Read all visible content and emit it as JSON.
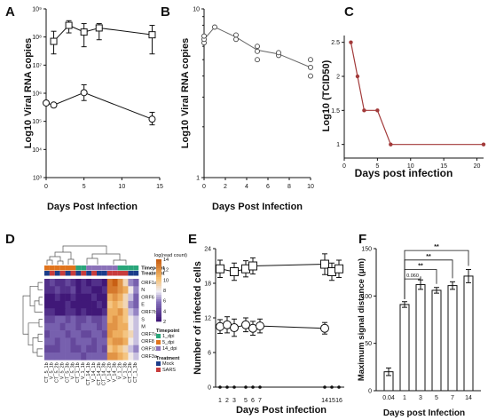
{
  "chart_data": [
    {
      "panel": "A",
      "type": "line",
      "scale_y": "log",
      "ylabel": "Viral RNA copies",
      "ylabel_prefix": "Log10",
      "xlabel": "Days Post Infection",
      "xlim": [
        0,
        15
      ],
      "x_ticks": [
        "0",
        "5",
        "10",
        "15"
      ],
      "ylim": [
        1000,
        1000000000
      ],
      "y_ticks": [
        {
          "v": 1000,
          "t": "10³"
        },
        {
          "v": 10000,
          "t": "10⁴"
        },
        {
          "v": 100000,
          "t": "10⁵"
        },
        {
          "v": 1000000,
          "t": "10⁶"
        },
        {
          "v": 10000000,
          "t": "10⁷"
        },
        {
          "v": 100000000,
          "t": "10⁸"
        },
        {
          "v": 1000000000,
          "t": "10⁹"
        }
      ],
      "series": [
        {
          "marker": "square",
          "points": [
            {
              "x": 1,
              "y": 70000000,
              "lo": 25000000,
              "hi": 160000000
            },
            {
              "x": 3,
              "y": 260000000,
              "lo": 140000000,
              "hi": 380000000
            },
            {
              "x": 5,
              "y": 150000000,
              "lo": 45000000,
              "hi": 300000000
            },
            {
              "x": 7,
              "y": 210000000,
              "lo": 80000000,
              "hi": 300000000
            },
            {
              "x": 14,
              "y": 120000000,
              "lo": 25000000,
              "hi": 260000000
            }
          ]
        },
        {
          "marker": "circle",
          "points": [
            {
              "x": 0,
              "y": 450000
            },
            {
              "x": 1,
              "y": 380000
            },
            {
              "x": 5,
              "y": 1050000,
              "lo": 550000,
              "hi": 2000000
            },
            {
              "x": 14,
              "y": 120000,
              "lo": 75000,
              "hi": 210000
            }
          ]
        }
      ]
    },
    {
      "panel": "B",
      "type": "scatter",
      "scale_y": "log",
      "ylabel": "Viral RNA copies",
      "ylabel_prefix": "Log10",
      "xlabel": "Days Post Infection",
      "xlim": [
        0,
        10
      ],
      "x_ticks": [
        "0",
        "2",
        "4",
        "6",
        "8",
        "10"
      ],
      "ylim": [
        1,
        10
      ],
      "y_ticks": [
        {
          "v": 1,
          "t": "1"
        },
        {
          "v": 10,
          "t": "10"
        }
      ],
      "mean_line": [
        {
          "x": 0,
          "y": 6.6
        },
        {
          "x": 1,
          "y": 7.8
        },
        {
          "x": 3,
          "y": 6.8
        },
        {
          "x": 5,
          "y": 5.7
        },
        {
          "x": 7,
          "y": 5.4
        },
        {
          "x": 10,
          "y": 4.5
        }
      ],
      "points": [
        {
          "x": 0,
          "y": 6.3
        },
        {
          "x": 0,
          "y": 6.6
        },
        {
          "x": 0,
          "y": 6.9
        },
        {
          "x": 1,
          "y": 7.8
        },
        {
          "x": 3,
          "y": 6.6
        },
        {
          "x": 3,
          "y": 7.0
        },
        {
          "x": 5,
          "y": 5.0
        },
        {
          "x": 5,
          "y": 5.6
        },
        {
          "x": 5,
          "y": 6.0
        },
        {
          "x": 7,
          "y": 5.3
        },
        {
          "x": 7,
          "y": 5.5
        },
        {
          "x": 10,
          "y": 4.0
        },
        {
          "x": 10,
          "y": 4.5
        },
        {
          "x": 10,
          "y": 5.0
        }
      ]
    },
    {
      "panel": "C",
      "type": "line",
      "ylabel": "Log10 (TCID50)",
      "xlabel": "Days post infection",
      "xlim": [
        0,
        21
      ],
      "x_ticks": [
        "0",
        "5",
        "10",
        "15",
        "20"
      ],
      "ylim": [
        0.8,
        2.6
      ],
      "y_ticks": [
        "1",
        "1.5",
        "2",
        "2.5"
      ],
      "color": "#a23a3a",
      "points": [
        {
          "x": 1,
          "y": 2.5
        },
        {
          "x": 2,
          "y": 2.0
        },
        {
          "x": 3,
          "y": 1.5
        },
        {
          "x": 5,
          "y": 1.5
        },
        {
          "x": 7,
          "y": 1.0
        },
        {
          "x": 21,
          "y": 1.0
        }
      ]
    },
    {
      "panel": "D",
      "type": "heatmap",
      "colorbar_title": "log(read count)",
      "colorbar_ticks": [
        "14",
        "12",
        "10",
        "8",
        "6",
        "4",
        "2"
      ],
      "rows": [
        "ORF1ab",
        "N",
        "ORF6",
        "E",
        "ORF7b",
        "S",
        "M",
        "ORF7a",
        "ORF8",
        "ORF10",
        "ORF3a"
      ],
      "columns": [
        "CT_5_1b",
        "V_5_1b",
        "CT_5_2b",
        "V_5_2b",
        "CT_5_3b",
        "V_5_3b",
        "CT_1_1b",
        "V_1_1b",
        "CT_14_1b",
        "V_14_1b",
        "CT_14_2b",
        "CT_14_3b",
        "V_14_2b",
        "V_14_3b",
        "V_1_2b",
        "V_1_3b",
        "CT_1_2b",
        "CT_1_3b"
      ],
      "values": [
        [
          3,
          4,
          3,
          3,
          4,
          3,
          2,
          3,
          2,
          3,
          3,
          2,
          13,
          14,
          12,
          9,
          6,
          5
        ],
        [
          3,
          3,
          4,
          3,
          3,
          4,
          2,
          3,
          3,
          2,
          2,
          3,
          13,
          13,
          12,
          11,
          8,
          6
        ],
        [
          2,
          2,
          3,
          2,
          2,
          3,
          2,
          2,
          2,
          3,
          2,
          2,
          11,
          12,
          11,
          9,
          7,
          5
        ],
        [
          2,
          2,
          2,
          2,
          3,
          2,
          2,
          2,
          2,
          2,
          3,
          2,
          10,
          11,
          10,
          9,
          6,
          5
        ],
        [
          3,
          3,
          2,
          2,
          3,
          3,
          2,
          3,
          2,
          2,
          2,
          3,
          11,
          11,
          12,
          10,
          7,
          6
        ],
        [
          4,
          4,
          5,
          5,
          4,
          5,
          4,
          4,
          5,
          4,
          4,
          5,
          11,
          12,
          11,
          10,
          8,
          7
        ],
        [
          5,
          5,
          5,
          4,
          5,
          5,
          4,
          5,
          5,
          5,
          4,
          5,
          12,
          12,
          11,
          11,
          8,
          7
        ],
        [
          4,
          5,
          5,
          5,
          4,
          5,
          5,
          4,
          4,
          5,
          5,
          4,
          12,
          11,
          11,
          10,
          9,
          7
        ],
        [
          5,
          5,
          4,
          5,
          5,
          4,
          5,
          5,
          5,
          4,
          5,
          5,
          11,
          12,
          12,
          11,
          8,
          7
        ],
        [
          4,
          4,
          4,
          5,
          5,
          4,
          4,
          5,
          4,
          4,
          5,
          4,
          10,
          11,
          10,
          9,
          7,
          6
        ],
        [
          5,
          5,
          5,
          5,
          5,
          5,
          5,
          4,
          5,
          5,
          5,
          5,
          12,
          12,
          11,
          10,
          8,
          7
        ]
      ],
      "annotation_tracks": [
        {
          "title": "Timepoint",
          "items": [
            {
              "label": "1_dpi",
              "color": "#2aa67a"
            },
            {
              "label": "5_dpi",
              "color": "#e0741d"
            },
            {
              "label": "14_dpi",
              "color": "#8b72b8"
            }
          ],
          "sequence": [
            "5_dpi",
            "5_dpi",
            "5_dpi",
            "5_dpi",
            "5_dpi",
            "5_dpi",
            "1_dpi",
            "1_dpi",
            "14_dpi",
            "14_dpi",
            "14_dpi",
            "14_dpi",
            "14_dpi",
            "14_dpi",
            "1_dpi",
            "1_dpi",
            "1_dpi",
            "1_dpi"
          ]
        },
        {
          "title": "Treatment",
          "items": [
            {
              "label": "Mock",
              "color": "#1b3d8a"
            },
            {
              "label": "SARS",
              "color": "#c83c3c"
            }
          ],
          "sequence": [
            "Mock",
            "SARS",
            "Mock",
            "SARS",
            "Mock",
            "SARS",
            "Mock",
            "SARS",
            "Mock",
            "SARS",
            "Mock",
            "Mock",
            "SARS",
            "SARS",
            "SARS",
            "SARS",
            "Mock",
            "Mock"
          ]
        }
      ]
    },
    {
      "panel": "E",
      "type": "line",
      "ylabel": "Number of infected cells",
      "xlabel": "Days Post   infection",
      "x_ticks": [
        "1",
        "2",
        "3",
        "5",
        "6",
        "7",
        "14",
        "15",
        "16"
      ],
      "ylim": [
        0,
        24
      ],
      "y_ticks": [
        "0",
        "6",
        "12",
        "18",
        "24"
      ],
      "series": [
        {
          "marker": "square",
          "points": [
            {
              "x": "1",
              "y": 20.5,
              "e": 1.5
            },
            {
              "x": "3",
              "y": 20.0,
              "e": 1.5
            },
            {
              "x": "5",
              "y": 20.5,
              "e": 1.4
            },
            {
              "x": "6",
              "y": 21.0,
              "e": 1.4
            },
            {
              "x": "14",
              "y": 21.3,
              "e": 1.8
            },
            {
              "x": "15",
              "y": 20.0,
              "e": 1.5
            },
            {
              "x": "16",
              "y": 20.5,
              "e": 1.5
            }
          ]
        },
        {
          "marker": "circle",
          "points": [
            {
              "x": "1",
              "y": 10.5,
              "e": 1.2
            },
            {
              "x": "2",
              "y": 10.8,
              "e": 1.4
            },
            {
              "x": "3",
              "y": 10.3,
              "e": 1.5
            },
            {
              "x": "5",
              "y": 10.8,
              "e": 1.2
            },
            {
              "x": "6",
              "y": 10.2,
              "e": 1.2
            },
            {
              "x": "7",
              "y": 10.6,
              "e": 1.2
            },
            {
              "x": "14",
              "y": 10.2,
              "e": 1.0
            }
          ]
        },
        {
          "marker": "dot",
          "points": [
            {
              "x": "1",
              "y": 0
            },
            {
              "x": "2",
              "y": 0
            },
            {
              "x": "3",
              "y": 0
            },
            {
              "x": "5",
              "y": 0
            },
            {
              "x": "6",
              "y": 0
            },
            {
              "x": "7",
              "y": 0
            },
            {
              "x": "14",
              "y": 0
            },
            {
              "x": "15",
              "y": 0
            },
            {
              "x": "16",
              "y": 0
            }
          ]
        }
      ]
    },
    {
      "panel": "F",
      "type": "bar",
      "ylabel": "Maximum signal distance (μm)",
      "xlabel": "Days post Infection",
      "categories": [
        "0.04",
        "1",
        "3",
        "5",
        "7",
        "14"
      ],
      "values": [
        20,
        91,
        112,
        106,
        111,
        121
      ],
      "errors": [
        4,
        3,
        5,
        3,
        4,
        7
      ],
      "ylim": [
        0,
        150
      ],
      "y_ticks": [
        "0",
        "50",
        "100",
        "150"
      ],
      "annotations": [
        {
          "from": "1",
          "to": "3",
          "label": "0.060"
        },
        {
          "from": "1",
          "to": "5",
          "label": "**"
        },
        {
          "from": "1",
          "to": "7",
          "label": "**"
        },
        {
          "from": "1",
          "to": "14",
          "label": "**"
        }
      ]
    }
  ]
}
